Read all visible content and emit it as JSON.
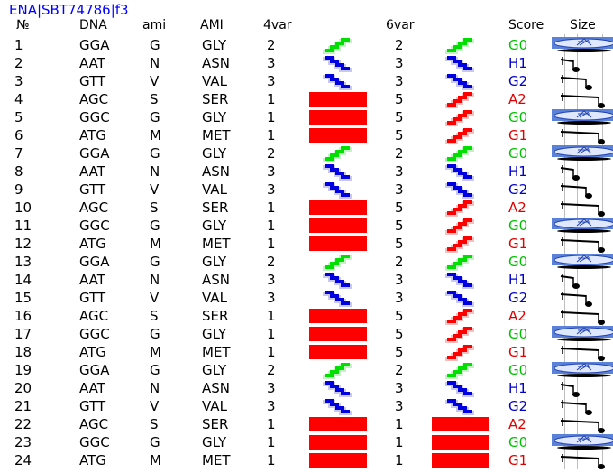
{
  "title": "ENA|SBT74786|f3",
  "columns": [
    "№",
    "DNA",
    "ami",
    "AMI",
    "4var",
    "6var",
    "Score",
    "Size"
  ],
  "rows": [
    {
      "n": "1",
      "dna": "GGA",
      "ami": "G",
      "AMI": "GLY",
      "v4": "2",
      "v6": "2",
      "score": "G0"
    },
    {
      "n": "2",
      "dna": "AAT",
      "ami": "N",
      "AMI": "ASN",
      "v4": "3",
      "v6": "3",
      "score": "H1"
    },
    {
      "n": "3",
      "dna": "GTT",
      "ami": "V",
      "AMI": "VAL",
      "v4": "3",
      "v6": "3",
      "score": "G2"
    },
    {
      "n": "4",
      "dna": "AGC",
      "ami": "S",
      "AMI": "SER",
      "v4": "1",
      "v6": "5",
      "score": "A2"
    },
    {
      "n": "5",
      "dna": "GGC",
      "ami": "G",
      "AMI": "GLY",
      "v4": "1",
      "v6": "5",
      "score": "G0"
    },
    {
      "n": "6",
      "dna": "ATG",
      "ami": "M",
      "AMI": "MET",
      "v4": "1",
      "v6": "5",
      "score": "G1"
    },
    {
      "n": "7",
      "dna": "GGA",
      "ami": "G",
      "AMI": "GLY",
      "v4": "2",
      "v6": "2",
      "score": "G0"
    },
    {
      "n": "8",
      "dna": "AAT",
      "ami": "N",
      "AMI": "ASN",
      "v4": "3",
      "v6": "3",
      "score": "H1"
    },
    {
      "n": "9",
      "dna": "GTT",
      "ami": "V",
      "AMI": "VAL",
      "v4": "3",
      "v6": "3",
      "score": "G2"
    },
    {
      "n": "10",
      "dna": "AGC",
      "ami": "S",
      "AMI": "SER",
      "v4": "1",
      "v6": "5",
      "score": "A2"
    },
    {
      "n": "11",
      "dna": "GGC",
      "ami": "G",
      "AMI": "GLY",
      "v4": "1",
      "v6": "5",
      "score": "G0"
    },
    {
      "n": "12",
      "dna": "ATG",
      "ami": "M",
      "AMI": "MET",
      "v4": "1",
      "v6": "5",
      "score": "G1"
    },
    {
      "n": "13",
      "dna": "GGA",
      "ami": "G",
      "AMI": "GLY",
      "v4": "2",
      "v6": "2",
      "score": "G0"
    },
    {
      "n": "14",
      "dna": "AAT",
      "ami": "N",
      "AMI": "ASN",
      "v4": "3",
      "v6": "3",
      "score": "H1"
    },
    {
      "n": "15",
      "dna": "GTT",
      "ami": "V",
      "AMI": "VAL",
      "v4": "3",
      "v6": "3",
      "score": "G2"
    },
    {
      "n": "16",
      "dna": "AGC",
      "ami": "S",
      "AMI": "SER",
      "v4": "1",
      "v6": "5",
      "score": "A2"
    },
    {
      "n": "17",
      "dna": "GGC",
      "ami": "G",
      "AMI": "GLY",
      "v4": "1",
      "v6": "5",
      "score": "G0"
    },
    {
      "n": "18",
      "dna": "ATG",
      "ami": "M",
      "AMI": "MET",
      "v4": "1",
      "v6": "5",
      "score": "G1"
    },
    {
      "n": "19",
      "dna": "GGA",
      "ami": "G",
      "AMI": "GLY",
      "v4": "2",
      "v6": "2",
      "score": "G0"
    },
    {
      "n": "20",
      "dna": "AAT",
      "ami": "N",
      "AMI": "ASN",
      "v4": "3",
      "v6": "3",
      "score": "H1"
    },
    {
      "n": "21",
      "dna": "GTT",
      "ami": "V",
      "AMI": "VAL",
      "v4": "3",
      "v6": "3",
      "score": "G2"
    },
    {
      "n": "22",
      "dna": "AGC",
      "ami": "S",
      "AMI": "SER",
      "v4": "1",
      "v6": "1",
      "score": "A2"
    },
    {
      "n": "23",
      "dna": "GGC",
      "ami": "G",
      "AMI": "GLY",
      "v4": "1",
      "v6": "1",
      "score": "G0"
    },
    {
      "n": "24",
      "dna": "ATG",
      "ami": "M",
      "AMI": "MET",
      "v4": "1",
      "v6": "1",
      "score": "G1"
    }
  ],
  "colors": {
    "title": "#0000ff",
    "bar_red": "#ff0000",
    "score_green": "#00c000",
    "score_blue": "#0000cc",
    "score_red": "#e00000",
    "helix_green": "#00e000",
    "helix_blue": "#0000e0",
    "helix_red": "#ff0000"
  }
}
